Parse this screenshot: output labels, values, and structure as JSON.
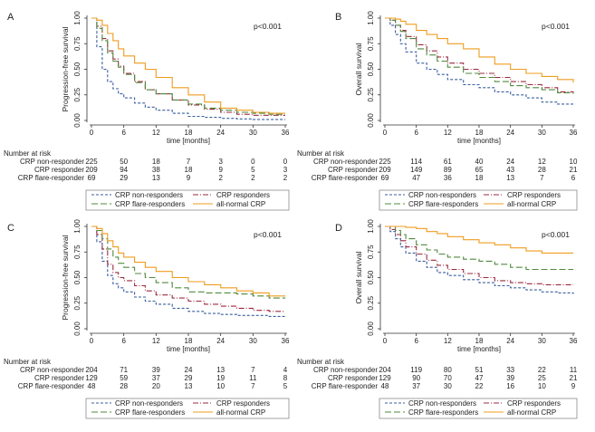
{
  "colors": {
    "non_responder": "#3a5f9e",
    "responder": "#9b2a3f",
    "flare_responder": "#4f8a3c",
    "all_normal": "#ef9c1f"
  },
  "chart_data": [
    {
      "type": "line",
      "panel": "A",
      "ylabel": "Progression-free survival",
      "xlabel": "time [months]",
      "pvalue": "p<0.001",
      "xlim": [
        0,
        36
      ],
      "ylim": [
        0,
        1
      ],
      "xticks": [
        "0",
        "6",
        "12",
        "18",
        "24",
        "30",
        "36"
      ],
      "yticks": [
        "0.00",
        "0.25",
        "0.50",
        "0.75",
        "1.00"
      ],
      "legend": [
        "CRP non-responders",
        "CRP responders",
        "CRP flare-responders",
        "all-normal CRP"
      ],
      "series": [
        {
          "name": "CRP non-responders",
          "key": "non_responder",
          "dash": "3,2",
          "x": [
            0,
            1,
            2,
            3,
            4,
            5,
            6,
            8,
            10,
            12,
            15,
            18,
            21,
            24,
            27,
            30,
            36
          ],
          "y": [
            1,
            0.72,
            0.5,
            0.38,
            0.31,
            0.26,
            0.22,
            0.17,
            0.13,
            0.1,
            0.07,
            0.04,
            0.03,
            0.02,
            0.015,
            0.01,
            0.01
          ]
        },
        {
          "name": "CRP responders",
          "key": "responder",
          "dash": "6,2,1,2",
          "x": [
            0,
            1,
            2,
            3,
            4,
            5,
            6,
            8,
            10,
            12,
            15,
            18,
            21,
            24,
            27,
            30,
            33,
            36
          ],
          "y": [
            1,
            0.92,
            0.8,
            0.68,
            0.6,
            0.53,
            0.46,
            0.38,
            0.3,
            0.26,
            0.2,
            0.15,
            0.11,
            0.08,
            0.06,
            0.05,
            0.05,
            0.05
          ]
        },
        {
          "name": "CRP flare-responders",
          "key": "flare_responder",
          "dash": "7,3",
          "x": [
            0,
            1,
            2,
            3,
            4,
            5,
            6,
            8,
            10,
            12,
            15,
            18,
            21,
            24,
            27,
            30,
            33,
            36
          ],
          "y": [
            1,
            0.9,
            0.78,
            0.66,
            0.58,
            0.52,
            0.45,
            0.37,
            0.3,
            0.26,
            0.2,
            0.16,
            0.12,
            0.1,
            0.08,
            0.07,
            0.06,
            0.06
          ]
        },
        {
          "name": "all-normal CRP",
          "key": "all_normal",
          "dash": "",
          "x": [
            0,
            1,
            2,
            3,
            4,
            5,
            6,
            8,
            10,
            12,
            15,
            18,
            21,
            24,
            27,
            30,
            33,
            36
          ],
          "y": [
            1,
            0.98,
            0.93,
            0.85,
            0.78,
            0.7,
            0.63,
            0.56,
            0.5,
            0.42,
            0.32,
            0.25,
            0.18,
            0.12,
            0.1,
            0.08,
            0.07,
            0.07
          ]
        }
      ],
      "risk_table": {
        "title": "Number at risk",
        "rows": [
          {
            "label": "CRP non-responder",
            "values": [
              "225",
              "50",
              "18",
              "7",
              "3",
              "0",
              "0"
            ]
          },
          {
            "label": "CRP responder",
            "values": [
              "209",
              "94",
              "38",
              "18",
              "9",
              "5",
              "3"
            ]
          },
          {
            "label": "CRP flare-responder",
            "values": [
              "69",
              "29",
              "13",
              "9",
              "2",
              "2",
              "2"
            ]
          }
        ]
      }
    },
    {
      "type": "line",
      "panel": "B",
      "ylabel": "Overall survival",
      "xlabel": "time [months]",
      "pvalue": "p<0.001",
      "xlim": [
        0,
        36
      ],
      "ylim": [
        0,
        1
      ],
      "xticks": [
        "0",
        "6",
        "12",
        "18",
        "24",
        "30",
        "36"
      ],
      "yticks": [
        "0.00",
        "0.25",
        "0.50",
        "0.75",
        "1.00"
      ],
      "legend": [
        "CRP non-responders",
        "CRP responders",
        "CRP flare-responders",
        "all-normal CRP"
      ],
      "series": [
        {
          "name": "CRP non-responders",
          "key": "non_responder",
          "dash": "3,2",
          "x": [
            0,
            1,
            2,
            3,
            4,
            6,
            8,
            10,
            12,
            15,
            18,
            21,
            24,
            27,
            30,
            33,
            36
          ],
          "y": [
            1,
            0.93,
            0.84,
            0.75,
            0.67,
            0.56,
            0.5,
            0.45,
            0.4,
            0.35,
            0.32,
            0.28,
            0.25,
            0.22,
            0.18,
            0.16,
            0.16
          ]
        },
        {
          "name": "CRP responders",
          "key": "responder",
          "dash": "6,2,1,2",
          "x": [
            0,
            1,
            2,
            3,
            4,
            6,
            8,
            10,
            12,
            15,
            18,
            21,
            24,
            27,
            30,
            33,
            36
          ],
          "y": [
            1,
            0.98,
            0.93,
            0.88,
            0.82,
            0.74,
            0.68,
            0.62,
            0.56,
            0.5,
            0.46,
            0.42,
            0.38,
            0.35,
            0.32,
            0.28,
            0.27
          ]
        },
        {
          "name": "CRP flare-responders",
          "key": "flare_responder",
          "dash": "7,3",
          "x": [
            0,
            1,
            2,
            3,
            4,
            6,
            8,
            10,
            12,
            15,
            18,
            21,
            24,
            27,
            30,
            33,
            36
          ],
          "y": [
            1,
            0.98,
            0.93,
            0.87,
            0.8,
            0.7,
            0.64,
            0.58,
            0.52,
            0.46,
            0.42,
            0.38,
            0.34,
            0.32,
            0.3,
            0.27,
            0.26
          ]
        },
        {
          "name": "all-normal CRP",
          "key": "all_normal",
          "dash": "",
          "x": [
            0,
            1,
            2,
            3,
            4,
            6,
            8,
            10,
            12,
            15,
            18,
            21,
            24,
            27,
            30,
            33,
            36
          ],
          "y": [
            1,
            1,
            0.99,
            0.97,
            0.94,
            0.88,
            0.84,
            0.8,
            0.75,
            0.7,
            0.62,
            0.55,
            0.5,
            0.46,
            0.43,
            0.4,
            0.37
          ]
        }
      ],
      "risk_table": {
        "title": "Number at risk",
        "rows": [
          {
            "label": "CRP non-responder",
            "values": [
              "225",
              "114",
              "61",
              "40",
              "24",
              "12",
              "10"
            ]
          },
          {
            "label": "CRP responder",
            "values": [
              "209",
              "149",
              "89",
              "65",
              "43",
              "28",
              "21"
            ]
          },
          {
            "label": "CRP flare-responder",
            "values": [
              "69",
              "47",
              "36",
              "18",
              "13",
              "7",
              "6"
            ]
          }
        ]
      }
    },
    {
      "type": "line",
      "panel": "C",
      "ylabel": "Progression-free survival",
      "xlabel": "time [months]",
      "pvalue": "p<0.001",
      "xlim": [
        0,
        36
      ],
      "ylim": [
        0,
        1
      ],
      "xticks": [
        "0",
        "6",
        "12",
        "18",
        "24",
        "30",
        "36"
      ],
      "yticks": [
        "0.00",
        "0.25",
        "0.50",
        "0.75",
        "1.00"
      ],
      "legend": [
        "CRP non-responders",
        "CRP responders",
        "CRP flare-responders",
        "all-normal CRP"
      ],
      "series": [
        {
          "name": "CRP non-responders",
          "key": "non_responder",
          "dash": "3,2",
          "x": [
            0,
            1,
            2,
            3,
            4,
            5,
            6,
            8,
            10,
            12,
            15,
            18,
            21,
            24,
            27,
            30,
            33,
            36
          ],
          "y": [
            1,
            0.85,
            0.66,
            0.52,
            0.44,
            0.4,
            0.36,
            0.31,
            0.27,
            0.24,
            0.2,
            0.17,
            0.15,
            0.14,
            0.13,
            0.13,
            0.12,
            0.12
          ]
        },
        {
          "name": "CRP responders",
          "key": "responder",
          "dash": "6,2,1,2",
          "x": [
            0,
            1,
            2,
            3,
            4,
            5,
            6,
            8,
            10,
            12,
            15,
            18,
            21,
            24,
            27,
            30,
            33,
            36
          ],
          "y": [
            1,
            0.92,
            0.78,
            0.63,
            0.55,
            0.5,
            0.47,
            0.42,
            0.37,
            0.33,
            0.3,
            0.27,
            0.24,
            0.22,
            0.2,
            0.18,
            0.17,
            0.17
          ]
        },
        {
          "name": "CRP flare-responders",
          "key": "flare_responder",
          "dash": "7,3",
          "x": [
            0,
            1,
            2,
            3,
            4,
            5,
            6,
            8,
            10,
            12,
            15,
            18,
            21,
            24,
            27,
            30,
            33,
            36
          ],
          "y": [
            1,
            0.96,
            0.88,
            0.78,
            0.7,
            0.64,
            0.6,
            0.54,
            0.5,
            0.45,
            0.4,
            0.36,
            0.35,
            0.35,
            0.34,
            0.32,
            0.3,
            0.3
          ]
        },
        {
          "name": "all-normal CRP",
          "key": "all_normal",
          "dash": "",
          "x": [
            0,
            1,
            2,
            3,
            4,
            5,
            6,
            8,
            10,
            12,
            15,
            18,
            21,
            24,
            27,
            30,
            33,
            36
          ],
          "y": [
            1,
            0.98,
            0.93,
            0.86,
            0.8,
            0.74,
            0.7,
            0.65,
            0.6,
            0.56,
            0.5,
            0.46,
            0.43,
            0.4,
            0.37,
            0.35,
            0.32,
            0.32
          ]
        }
      ],
      "risk_table": {
        "title": "Number at risk",
        "rows": [
          {
            "label": "CRP non-responder",
            "values": [
              "204",
              "71",
              "39",
              "24",
              "13",
              "7",
              "4"
            ]
          },
          {
            "label": "CRP responder",
            "values": [
              "129",
              "59",
              "37",
              "29",
              "19",
              "11",
              "8"
            ]
          },
          {
            "label": "CRP flare-responder",
            "values": [
              "48",
              "28",
              "20",
              "13",
              "10",
              "7",
              "5"
            ]
          }
        ]
      }
    },
    {
      "type": "line",
      "panel": "D",
      "ylabel": "Overall survival",
      "xlabel": "time [months]",
      "pvalue": "p<0.001",
      "xlim": [
        0,
        36
      ],
      "ylim": [
        0,
        1
      ],
      "xticks": [
        "0",
        "6",
        "12",
        "18",
        "24",
        "30",
        "36"
      ],
      "yticks": [
        "0.00",
        "0.25",
        "0.50",
        "0.75",
        "1.00"
      ],
      "legend": [
        "CRP non-responders",
        "CRP responders",
        "CRP flare-responders",
        "all-normal CRP"
      ],
      "series": [
        {
          "name": "CRP non-responders",
          "key": "non_responder",
          "dash": "3,2",
          "x": [
            0,
            1,
            2,
            3,
            4,
            6,
            8,
            10,
            12,
            15,
            18,
            21,
            24,
            27,
            30,
            33,
            36
          ],
          "y": [
            1,
            0.95,
            0.88,
            0.8,
            0.74,
            0.66,
            0.6,
            0.55,
            0.52,
            0.48,
            0.45,
            0.42,
            0.4,
            0.38,
            0.36,
            0.35,
            0.34
          ]
        },
        {
          "name": "CRP responders",
          "key": "responder",
          "dash": "6,2,1,2",
          "x": [
            0,
            1,
            2,
            3,
            4,
            6,
            8,
            10,
            12,
            15,
            18,
            21,
            24,
            27,
            30,
            33,
            36
          ],
          "y": [
            1,
            0.97,
            0.92,
            0.86,
            0.8,
            0.73,
            0.67,
            0.62,
            0.58,
            0.54,
            0.5,
            0.47,
            0.45,
            0.44,
            0.43,
            0.43,
            0.43
          ]
        },
        {
          "name": "CRP flare-responders",
          "key": "flare_responder",
          "dash": "7,3",
          "x": [
            0,
            1,
            2,
            3,
            4,
            6,
            8,
            10,
            12,
            15,
            18,
            21,
            24,
            27,
            30,
            33,
            36
          ],
          "y": [
            1,
            1,
            0.96,
            0.92,
            0.88,
            0.82,
            0.77,
            0.73,
            0.7,
            0.68,
            0.66,
            0.63,
            0.6,
            0.58,
            0.58,
            0.58,
            0.58
          ]
        },
        {
          "name": "all-normal CRP",
          "key": "all_normal",
          "dash": "",
          "x": [
            0,
            1,
            2,
            3,
            4,
            6,
            8,
            10,
            12,
            15,
            18,
            21,
            24,
            27,
            30,
            33,
            36
          ],
          "y": [
            1,
            1,
            1,
            1,
            0.99,
            0.98,
            0.95,
            0.93,
            0.9,
            0.87,
            0.84,
            0.82,
            0.79,
            0.76,
            0.74,
            0.74,
            0.74
          ]
        }
      ],
      "risk_table": {
        "title": "Number at risk",
        "rows": [
          {
            "label": "CRP non-responder",
            "values": [
              "204",
              "119",
              "80",
              "51",
              "33",
              "22",
              "11"
            ]
          },
          {
            "label": "CRP responder",
            "values": [
              "129",
              "90",
              "70",
              "47",
              "39",
              "25",
              "21"
            ]
          },
          {
            "label": "CRP flare-responder",
            "values": [
              "48",
              "37",
              "30",
              "22",
              "16",
              "10",
              "9"
            ]
          }
        ]
      }
    }
  ]
}
